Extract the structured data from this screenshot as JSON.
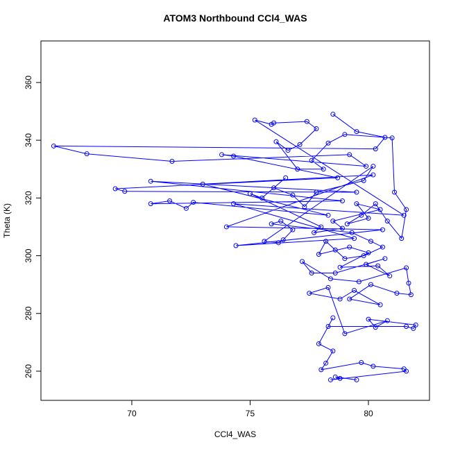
{
  "chart_data": {
    "type": "line",
    "title": "ATOM3 Northbound CCl4_WAS",
    "x_label": "CCl4_WAS",
    "y_label": "Theta (K)",
    "x": [
      78.5,
      79.5,
      80.7,
      80.3,
      66.7,
      68.1,
      71.7,
      79.2,
      79.9,
      73.8,
      74.3,
      78.7,
      69.3,
      69.7,
      79.5,
      70.8,
      78.9,
      70.8,
      71.6,
      72.3,
      72.6,
      78.3,
      73.0,
      80.2,
      74.0,
      80.6,
      74.4,
      79.4,
      74.3,
      81.5,
      75.2,
      75.9,
      76.0,
      77.4,
      77.8,
      77.1,
      76.6,
      76.1,
      77.0,
      78.1,
      77.6,
      78.3,
      79.0,
      81.0,
      81.1,
      81.6,
      81.4,
      80.8,
      80.3,
      79.7,
      79.1,
      80.0,
      79.5,
      80.5,
      78.5,
      78.9,
      77.7,
      78.0,
      75.0,
      75.5,
      76.5,
      76.0,
      76.8,
      77.3,
      77.8,
      79.8,
      80.2,
      75.6,
      76.2,
      76.4,
      76.8,
      76.3,
      75.9,
      79.3,
      80.1,
      80.6,
      79.8,
      79.0,
      78.6,
      78.2,
      77.9,
      79.2,
      80.0,
      78.8,
      80.4,
      80.9,
      79.9,
      80.7,
      78.6,
      77.6,
      77.2,
      78.4,
      79.6,
      81.6,
      81.7,
      81.8,
      81.2,
      80.1,
      79.2,
      80.5,
      79.4,
      78.8,
      77.5,
      78.3,
      79.0,
      80.8,
      80.3,
      80.0,
      82.0,
      81.9,
      81.6,
      78.3,
      78.5,
      77.9,
      78.5,
      78.2,
      78.0,
      79.7,
      80.2,
      81.5,
      81.6,
      78.4,
      78.8,
      78.6,
      79.5
    ],
    "series": [
      {
        "color": "#0000ff",
        "values": [
          349,
          343,
          341,
          337,
          338,
          335.3,
          332.7,
          335,
          331,
          335,
          334.5,
          327,
          323.2,
          322.3,
          322,
          325.8,
          319,
          318,
          319,
          316.4,
          318.5,
          314,
          324.8,
          328,
          310,
          309,
          303.5,
          306,
          318,
          314,
          347,
          345.5,
          346,
          346.5,
          344,
          338.5,
          336.5,
          339.5,
          330,
          330,
          333,
          339,
          342,
          340.8,
          322,
          316,
          306,
          312,
          318,
          314,
          311,
          313,
          318,
          316,
          312,
          309.5,
          308,
          310,
          321.5,
          320,
          327,
          323.5,
          321,
          317,
          322,
          326,
          331,
          305,
          304.5,
          305.5,
          309,
          312,
          311,
          308,
          305,
          303,
          300,
          299,
          302,
          305,
          300.5,
          303,
          301,
          296,
          296.5,
          293,
          297,
          299,
          294,
          294,
          298,
          292,
          291,
          295.8,
          290.5,
          286.5,
          287,
          290,
          285,
          283,
          288,
          285,
          287,
          289,
          273,
          277.5,
          275.2,
          278,
          276,
          274.8,
          275.5,
          275.5,
          278.5,
          269.5,
          267,
          262.8,
          260.5,
          263,
          261.7,
          260.8,
          260,
          257,
          257.5,
          258,
          257
        ]
      }
    ],
    "xlim": [
      66.16,
      82.58
    ],
    "ylim": [
      249.9,
      374.4
    ],
    "xticks": [
      70,
      75,
      80
    ],
    "yticks": [
      260,
      280,
      300,
      320,
      340,
      360
    ],
    "markers": true
  }
}
